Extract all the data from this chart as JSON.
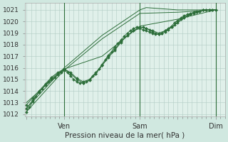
{
  "title": "",
  "xlabel": "Pression niveau de la mer( hPa )",
  "ylabel": "",
  "bg_color": "#d0e8e0",
  "plot_bg_color": "#e0f0ea",
  "grid_color": "#b0ccc4",
  "line_color": "#2d6e3a",
  "marker_color": "#2d6e3a",
  "ylim": [
    1011.8,
    1021.6
  ],
  "yticks": [
    1012,
    1013,
    1014,
    1015,
    1016,
    1017,
    1018,
    1019,
    1020,
    1021
  ],
  "xtick_labels": [
    "",
    "Ven",
    "",
    "Sam",
    "",
    "Dim"
  ],
  "xtick_positions": [
    0,
    48,
    96,
    144,
    192,
    240
  ],
  "xlim": [
    -2,
    252
  ],
  "vlines": [
    48,
    144,
    240
  ],
  "series_with_markers": [
    [
      0,
      1012.2,
      4,
      1012.6,
      8,
      1013.1,
      12,
      1013.5,
      16,
      1013.9,
      20,
      1014.2,
      24,
      1014.5,
      28,
      1014.8,
      32,
      1015.0,
      36,
      1015.2,
      40,
      1015.4,
      44,
      1015.6,
      48,
      1015.8,
      52,
      1015.6,
      56,
      1015.3,
      60,
      1015.0,
      64,
      1014.8,
      68,
      1014.7,
      72,
      1014.7,
      76,
      1014.8,
      80,
      1015.0,
      84,
      1015.3,
      88,
      1015.6,
      92,
      1015.9,
      96,
      1016.3,
      100,
      1016.7,
      104,
      1017.1,
      108,
      1017.4,
      112,
      1017.8,
      116,
      1018.1,
      120,
      1018.4,
      124,
      1018.7,
      128,
      1019.0,
      132,
      1019.2,
      136,
      1019.4,
      140,
      1019.5,
      144,
      1019.5,
      148,
      1019.5,
      152,
      1019.4,
      156,
      1019.3,
      160,
      1019.1,
      164,
      1019.0,
      168,
      1018.9,
      172,
      1019.0,
      176,
      1019.1,
      180,
      1019.3,
      184,
      1019.5,
      188,
      1019.7,
      192,
      1020.0,
      196,
      1020.2,
      200,
      1020.4,
      204,
      1020.5,
      208,
      1020.6,
      212,
      1020.7,
      216,
      1020.8,
      220,
      1020.9,
      224,
      1021.0,
      228,
      1021.0,
      232,
      1021.0,
      236,
      1021.0,
      240,
      1021.0
    ],
    [
      0,
      1012.5,
      8,
      1013.2,
      16,
      1013.9,
      24,
      1014.5,
      32,
      1015.1,
      40,
      1015.5,
      48,
      1015.9,
      56,
      1015.6,
      64,
      1015.1,
      72,
      1014.8,
      80,
      1015.0,
      88,
      1015.5,
      96,
      1016.2,
      104,
      1016.9,
      112,
      1017.5,
      120,
      1018.2,
      128,
      1018.8,
      136,
      1019.2,
      144,
      1019.5,
      152,
      1019.4,
      160,
      1019.2,
      168,
      1019.0,
      176,
      1019.2,
      184,
      1019.5,
      192,
      1019.9,
      200,
      1020.3,
      208,
      1020.6,
      216,
      1020.8,
      224,
      1021.0,
      232,
      1021.0,
      240,
      1021.0
    ],
    [
      0,
      1012.8,
      8,
      1013.4,
      16,
      1014.0,
      24,
      1014.6,
      32,
      1015.2,
      40,
      1015.6,
      48,
      1015.9,
      56,
      1015.5,
      64,
      1015.0,
      72,
      1014.7,
      80,
      1014.9,
      88,
      1015.5,
      96,
      1016.2,
      104,
      1017.0,
      112,
      1017.6,
      120,
      1018.3,
      128,
      1018.8,
      136,
      1019.2,
      144,
      1019.4,
      148,
      1019.3,
      152,
      1019.2,
      156,
      1019.1,
      160,
      1019.0,
      164,
      1018.9,
      168,
      1018.9,
      172,
      1019.0,
      176,
      1019.2,
      180,
      1019.4,
      184,
      1019.6,
      188,
      1019.9,
      192,
      1020.1,
      196,
      1020.3,
      200,
      1020.5,
      204,
      1020.6,
      208,
      1020.7,
      212,
      1020.8,
      216,
      1020.9,
      220,
      1020.9,
      224,
      1021.0,
      228,
      1021.0,
      232,
      1021.0,
      236,
      1021.0,
      240,
      1021.0
    ]
  ],
  "series_smooth": [
    [
      0,
      1012.2,
      48,
      1015.8,
      96,
      1018.5,
      144,
      1020.7,
      192,
      1020.8,
      240,
      1021.0
    ],
    [
      0,
      1012.5,
      48,
      1016.0,
      96,
      1018.8,
      144,
      1021.0,
      152,
      1021.2,
      192,
      1021.0,
      240,
      1021.0
    ],
    [
      0,
      1013.0,
      48,
      1015.9,
      96,
      1017.0,
      144,
      1019.6,
      192,
      1020.2,
      240,
      1021.0
    ]
  ]
}
